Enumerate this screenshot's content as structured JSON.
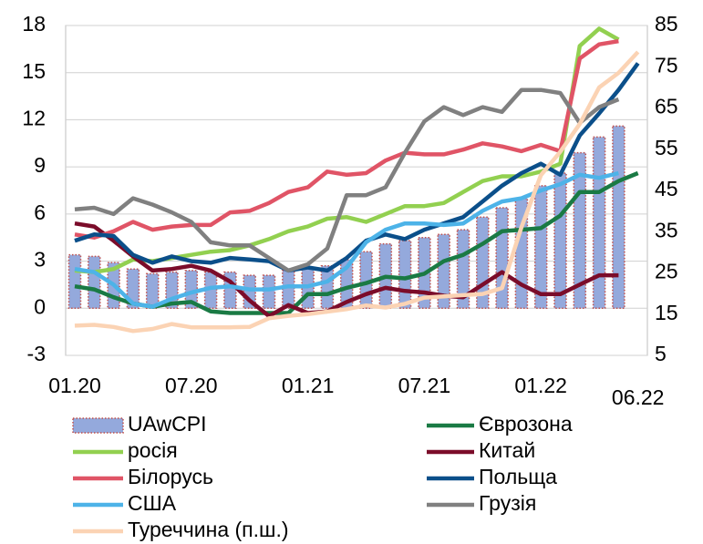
{
  "chart_data": {
    "type": "bar-line",
    "categories": [
      "01.20",
      null,
      null,
      null,
      null,
      null,
      "07.20",
      null,
      null,
      null,
      null,
      null,
      "01.21",
      null,
      null,
      null,
      null,
      null,
      "07.21",
      null,
      null,
      null,
      null,
      null,
      "01.22",
      null,
      null,
      null,
      null,
      "06.22"
    ],
    "ylim": [
      -3,
      18
    ],
    "yticks": [
      -3,
      0,
      3,
      6,
      9,
      12,
      15,
      18
    ],
    "y2lim": [
      5,
      85
    ],
    "y2ticks": [
      5,
      15,
      25,
      35,
      45,
      55,
      65,
      75,
      85
    ],
    "grid": true,
    "series": [
      {
        "name": "UAwCPI",
        "type": "bar",
        "color": "#94a9dc",
        "values": [
          3.4,
          3.3,
          2.9,
          2.5,
          2.2,
          2.3,
          2.4,
          2.3,
          2.3,
          2.1,
          2.1,
          2.4,
          2.6,
          2.7,
          3.1,
          3.6,
          4.1,
          4.3,
          4.5,
          4.7,
          5.0,
          5.8,
          6.4,
          7.0,
          7.8,
          8.6,
          9.9,
          10.9,
          11.6,
          null
        ]
      },
      {
        "name": "Єврозона",
        "type": "line",
        "color": "#1a7a44",
        "values": [
          1.4,
          1.2,
          0.7,
          0.3,
          0.1,
          0.3,
          0.4,
          -0.2,
          -0.3,
          -0.3,
          -0.3,
          -0.3,
          0.9,
          0.9,
          1.3,
          1.6,
          2.0,
          1.9,
          2.2,
          3.0,
          3.4,
          4.1,
          4.9,
          5.0,
          5.1,
          5.9,
          7.4,
          7.4,
          8.1,
          8.6
        ]
      },
      {
        "name": "росія",
        "type": "line",
        "color": "#92d050",
        "values": [
          2.4,
          2.3,
          2.5,
          3.1,
          3.0,
          3.2,
          3.4,
          3.6,
          3.7,
          4.0,
          4.4,
          4.9,
          5.2,
          5.7,
          5.8,
          5.5,
          6.0,
          6.5,
          6.5,
          6.7,
          7.4,
          8.1,
          8.4,
          8.4,
          8.7,
          9.2,
          16.7,
          17.8,
          17.1,
          null
        ]
      },
      {
        "name": "Китай",
        "type": "line",
        "color": "#7b0c2a",
        "values": [
          5.4,
          5.2,
          4.3,
          3.3,
          2.4,
          2.5,
          2.7,
          2.4,
          1.7,
          0.5,
          -0.5,
          0.2,
          -0.3,
          -0.2,
          0.4,
          0.9,
          1.3,
          1.1,
          1.0,
          0.8,
          0.7,
          1.5,
          2.3,
          1.5,
          0.9,
          0.9,
          1.5,
          2.1,
          2.1,
          null
        ]
      },
      {
        "name": "Білорусь",
        "type": "line",
        "color": "#e05466",
        "values": [
          4.7,
          4.5,
          4.9,
          5.5,
          5.0,
          5.2,
          5.3,
          5.3,
          6.1,
          6.2,
          6.7,
          7.4,
          7.7,
          8.7,
          8.5,
          8.6,
          9.4,
          9.9,
          9.8,
          9.8,
          10.1,
          10.5,
          10.3,
          10.0,
          10.4,
          10.0,
          15.9,
          16.8,
          17.0,
          null
        ]
      },
      {
        "name": "Польща",
        "type": "line",
        "color": "#0b4f8a",
        "values": [
          4.3,
          4.7,
          4.6,
          3.4,
          2.9,
          3.3,
          3.0,
          2.9,
          3.2,
          3.1,
          3.0,
          2.4,
          2.6,
          2.4,
          3.2,
          4.3,
          4.7,
          4.4,
          5.0,
          5.4,
          5.8,
          6.8,
          7.8,
          8.6,
          9.2,
          8.5,
          11.0,
          12.4,
          13.9,
          15.6
        ]
      },
      {
        "name": "США",
        "type": "line",
        "color": "#4db3e8",
        "values": [
          2.5,
          2.3,
          1.5,
          0.3,
          0.1,
          0.6,
          1.0,
          1.3,
          1.4,
          1.2,
          1.2,
          1.4,
          1.4,
          1.7,
          2.6,
          4.2,
          5.0,
          5.4,
          5.4,
          5.3,
          5.4,
          6.2,
          6.8,
          7.0,
          7.5,
          7.9,
          8.5,
          8.3,
          8.6,
          null
        ]
      },
      {
        "name": "Грузія",
        "type": "line",
        "color": "#808080",
        "values": [
          6.3,
          6.4,
          6.0,
          7.0,
          6.6,
          6.1,
          5.5,
          4.2,
          4.0,
          4.0,
          3.2,
          2.4,
          2.8,
          3.8,
          7.2,
          7.2,
          7.7,
          9.9,
          11.9,
          12.8,
          12.3,
          12.8,
          12.5,
          13.9,
          13.9,
          13.7,
          11.8,
          12.8,
          13.3,
          null
        ]
      },
      {
        "name": "Туреччина (п.ш.)",
        "type": "line",
        "axis": "y2",
        "color": "#fbd3b4",
        "values": [
          12.2,
          12.4,
          11.9,
          10.9,
          11.4,
          12.6,
          11.8,
          11.8,
          11.8,
          11.9,
          14.0,
          14.6,
          15.0,
          15.6,
          16.2,
          17.1,
          16.6,
          17.5,
          19.0,
          19.3,
          19.6,
          19.9,
          21.3,
          36.1,
          48.7,
          54.4,
          61.1,
          70.0,
          73.5,
          78.6
        ]
      }
    ]
  }
}
